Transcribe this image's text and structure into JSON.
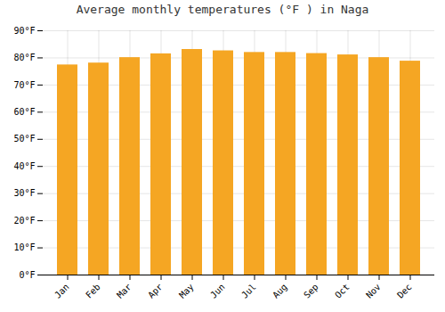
{
  "chart_data": {
    "type": "bar",
    "title": "Average monthly temperatures (°F ) in Naga",
    "categories": [
      "Jan",
      "Feb",
      "Mar",
      "Apr",
      "May",
      "Jun",
      "Jul",
      "Aug",
      "Sep",
      "Oct",
      "Nov",
      "Dec"
    ],
    "values": [
      77.4,
      78.1,
      80.1,
      81.5,
      83.1,
      82.6,
      82.0,
      82.0,
      81.6,
      81.1,
      80.1,
      78.8
    ],
    "color": "#F5A623",
    "ylim": [
      0,
      90
    ],
    "yticks": [
      {
        "value": 0,
        "label": "0°F"
      },
      {
        "value": 10,
        "label": "10°F"
      },
      {
        "value": 20,
        "label": "20°F"
      },
      {
        "value": 30,
        "label": "30°F"
      },
      {
        "value": 40,
        "label": "40°F"
      },
      {
        "value": 50,
        "label": "50°F"
      },
      {
        "value": 60,
        "label": "60°F"
      },
      {
        "value": 70,
        "label": "70°F"
      },
      {
        "value": 80,
        "label": "80°F"
      },
      {
        "value": 90,
        "label": "90°F"
      }
    ],
    "grid": true
  }
}
